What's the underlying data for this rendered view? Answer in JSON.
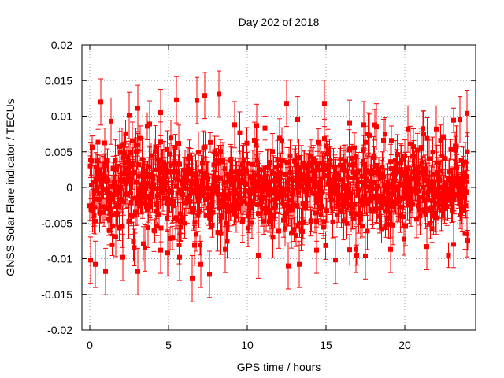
{
  "chart_data": {
    "type": "scatter",
    "title": "Day 202 of 2018",
    "xlabel": "GPS time / hours",
    "ylabel": "GNSS Solar Flare indicator / TECUs",
    "xlim": [
      -0.5,
      24.5
    ],
    "ylim": [
      -0.02,
      0.02
    ],
    "x_ticks": [
      0,
      5,
      10,
      15,
      20
    ],
    "x_tick_labels": [
      "0",
      "5",
      "10",
      "15",
      "20"
    ],
    "y_ticks": [
      -0.02,
      -0.015,
      -0.01,
      -0.005,
      0,
      0.005,
      0.01,
      0.015,
      0.02
    ],
    "y_tick_labels": [
      "-0.02",
      "-0.015",
      "-0.01",
      "-0.005",
      "0",
      "0.005",
      "0.01",
      "0.015",
      "0.02"
    ],
    "grid": true,
    "series": [
      {
        "name": "GNSS solar flare indicator",
        "color": "#ff0000",
        "marker": "square",
        "error_bars": true,
        "x_range": [
          0,
          24
        ],
        "sample_interval_hours": 0.025,
        "typical_spread": 0.005,
        "typical_error": 0.0025,
        "extremes": [
          {
            "x": 0.05,
            "y": -0.0102
          },
          {
            "x": 0.35,
            "y": -0.0108
          },
          {
            "x": 0.7,
            "y": 0.012
          },
          {
            "x": 1.0,
            "y": -0.0118
          },
          {
            "x": 1.35,
            "y": 0.0093
          },
          {
            "x": 2.1,
            "y": -0.0098
          },
          {
            "x": 2.5,
            "y": 0.0101
          },
          {
            "x": 3.05,
            "y": 0.0111
          },
          {
            "x": 3.05,
            "y": -0.0118
          },
          {
            "x": 3.5,
            "y": -0.0085
          },
          {
            "x": 3.8,
            "y": 0.0089
          },
          {
            "x": 4.5,
            "y": 0.0105
          },
          {
            "x": 4.5,
            "y": -0.0088
          },
          {
            "x": 4.95,
            "y": -0.0092
          },
          {
            "x": 5.5,
            "y": 0.0123
          },
          {
            "x": 5.7,
            "y": -0.0098
          },
          {
            "x": 6.5,
            "y": -0.0128
          },
          {
            "x": 6.8,
            "y": 0.0122
          },
          {
            "x": 7.05,
            "y": -0.0108
          },
          {
            "x": 7.3,
            "y": 0.0129
          },
          {
            "x": 7.6,
            "y": -0.0122
          },
          {
            "x": 8.2,
            "y": 0.0131
          },
          {
            "x": 8.6,
            "y": -0.0087
          },
          {
            "x": 9.2,
            "y": 0.0088
          },
          {
            "x": 10.7,
            "y": -0.0095
          },
          {
            "x": 12.5,
            "y": 0.0118
          },
          {
            "x": 12.6,
            "y": -0.011
          },
          {
            "x": 13.2,
            "y": 0.0095
          },
          {
            "x": 13.3,
            "y": -0.0108
          },
          {
            "x": 14.4,
            "y": -0.0088
          },
          {
            "x": 14.9,
            "y": 0.0118
          },
          {
            "x": 15.6,
            "y": -0.0102
          },
          {
            "x": 16.5,
            "y": 0.009
          },
          {
            "x": 16.9,
            "y": -0.0087
          },
          {
            "x": 17.4,
            "y": 0.0088
          },
          {
            "x": 17.5,
            "y": -0.0096
          },
          {
            "x": 18.2,
            "y": 0.0085
          },
          {
            "x": 19.1,
            "y": -0.0087
          },
          {
            "x": 20.2,
            "y": 0.0082
          },
          {
            "x": 21.2,
            "y": 0.0075
          },
          {
            "x": 21.4,
            "y": -0.0083
          },
          {
            "x": 22.0,
            "y": 0.0082
          },
          {
            "x": 23.1,
            "y": -0.008
          },
          {
            "x": 23.5,
            "y": 0.0095
          },
          {
            "x": 23.95,
            "y": 0.0104
          },
          {
            "x": 23.95,
            "y": -0.0065
          }
        ]
      }
    ]
  }
}
